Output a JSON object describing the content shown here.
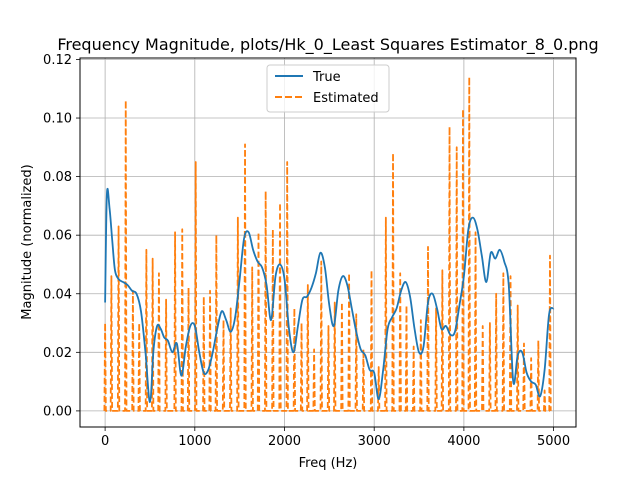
{
  "chart_data": {
    "type": "line",
    "title": "Frequency Magnitude, plots/Hk_0_Least Squares Estimator_8_0.png",
    "xlabel": "Freq (Hz)",
    "ylabel": "Magnitude (normalized)",
    "xlim": [
      -280,
      5250
    ],
    "ylim": [
      -0.0055,
      0.1205
    ],
    "x_ticks": [
      0,
      1000,
      2000,
      3000,
      4000,
      5000
    ],
    "x_tick_labels": [
      "0",
      "1000",
      "2000",
      "3000",
      "4000",
      "5000"
    ],
    "y_ticks": [
      0.0,
      0.02,
      0.04,
      0.06,
      0.08,
      0.1,
      0.12
    ],
    "y_tick_labels": [
      "0.00",
      "0.02",
      "0.04",
      "0.06",
      "0.08",
      "0.10",
      "0.12"
    ],
    "grid": true,
    "legend_position": "top-center",
    "series": [
      {
        "name": "True",
        "color": "#1f77b4",
        "style": "solid",
        "x": [
          0,
          20,
          50,
          80,
          110,
          150,
          200,
          250,
          300,
          350,
          400,
          450,
          500,
          540,
          580,
          620,
          660,
          700,
          750,
          800,
          850,
          900,
          950,
          1000,
          1050,
          1100,
          1150,
          1200,
          1250,
          1300,
          1350,
          1400,
          1450,
          1500,
          1550,
          1600,
          1650,
          1700,
          1750,
          1800,
          1850,
          1900,
          1950,
          2000,
          2050,
          2100,
          2150,
          2200,
          2250,
          2300,
          2350,
          2400,
          2450,
          2500,
          2550,
          2600,
          2650,
          2700,
          2750,
          2800,
          2850,
          2900,
          2950,
          3000,
          3050,
          3100,
          3150,
          3200,
          3250,
          3300,
          3350,
          3400,
          3450,
          3500,
          3550,
          3600,
          3650,
          3700,
          3750,
          3800,
          3850,
          3900,
          3950,
          4000,
          4050,
          4100,
          4150,
          4200,
          4250,
          4300,
          4350,
          4400,
          4450,
          4500,
          4550,
          4600,
          4650,
          4700,
          4750,
          4800,
          4850,
          4900,
          4950,
          5000
        ],
        "values": [
          0.037,
          0.074,
          0.069,
          0.058,
          0.048,
          0.045,
          0.044,
          0.043,
          0.041,
          0.04,
          0.034,
          0.02,
          0.003,
          0.021,
          0.029,
          0.028,
          0.025,
          0.024,
          0.02,
          0.023,
          0.012,
          0.022,
          0.029,
          0.029,
          0.02,
          0.013,
          0.014,
          0.02,
          0.028,
          0.034,
          0.031,
          0.027,
          0.032,
          0.045,
          0.059,
          0.061,
          0.055,
          0.051,
          0.049,
          0.043,
          0.031,
          0.046,
          0.05,
          0.045,
          0.028,
          0.02,
          0.029,
          0.038,
          0.039,
          0.042,
          0.047,
          0.054,
          0.049,
          0.036,
          0.029,
          0.041,
          0.046,
          0.043,
          0.035,
          0.027,
          0.021,
          0.019,
          0.014,
          0.013,
          0.004,
          0.014,
          0.028,
          0.032,
          0.035,
          0.041,
          0.044,
          0.039,
          0.028,
          0.02,
          0.022,
          0.037,
          0.04,
          0.035,
          0.028,
          0.029,
          0.026,
          0.027,
          0.036,
          0.046,
          0.062,
          0.066,
          0.062,
          0.053,
          0.044,
          0.054,
          0.052,
          0.055,
          0.051,
          0.043,
          0.01,
          0.019,
          0.02,
          0.013,
          0.01,
          0.009,
          0.005,
          0.014,
          0.033,
          0.035
        ]
      },
      {
        "name": "Estimated",
        "color": "#ff7f0e",
        "style": "dashed",
        "x": [
          0,
          70,
          150,
          230,
          310,
          380,
          460,
          530,
          600,
          680,
          780,
          860,
          930,
          1010,
          1100,
          1170,
          1240,
          1320,
          1400,
          1480,
          1560,
          1640,
          1710,
          1790,
          1870,
          1950,
          2030,
          2110,
          2190,
          2260,
          2330,
          2410,
          2490,
          2560,
          2640,
          2720,
          2800,
          2880,
          2970,
          3050,
          3130,
          3210,
          3290,
          3360,
          3440,
          3520,
          3600,
          3690,
          3760,
          3840,
          3920,
          3990,
          4060,
          4130,
          4210,
          4290,
          4360,
          4440,
          4520,
          4600,
          4670,
          4750,
          4830,
          4900,
          4960
        ],
        "peaks": [
          0.03,
          0.046,
          0.063,
          0.106,
          0.041,
          0.03,
          0.055,
          0.052,
          0.047,
          0.038,
          0.061,
          0.062,
          0.042,
          0.085,
          0.039,
          0.041,
          0.06,
          0.031,
          0.035,
          0.066,
          0.091,
          0.049,
          0.061,
          0.075,
          0.062,
          0.071,
          0.085,
          0.035,
          0.03,
          0.043,
          0.021,
          0.051,
          0.029,
          0.037,
          0.037,
          0.047,
          0.033,
          0.021,
          0.048,
          0.015,
          0.066,
          0.088,
          0.047,
          0.036,
          0.022,
          0.031,
          0.056,
          0.035,
          0.048,
          0.097,
          0.09,
          0.103,
          0.114,
          0.061,
          0.029,
          0.03,
          0.04,
          0.047,
          0.046,
          0.036,
          0.023,
          0.018,
          0.024,
          0.007,
          0.053
        ]
      }
    ]
  }
}
